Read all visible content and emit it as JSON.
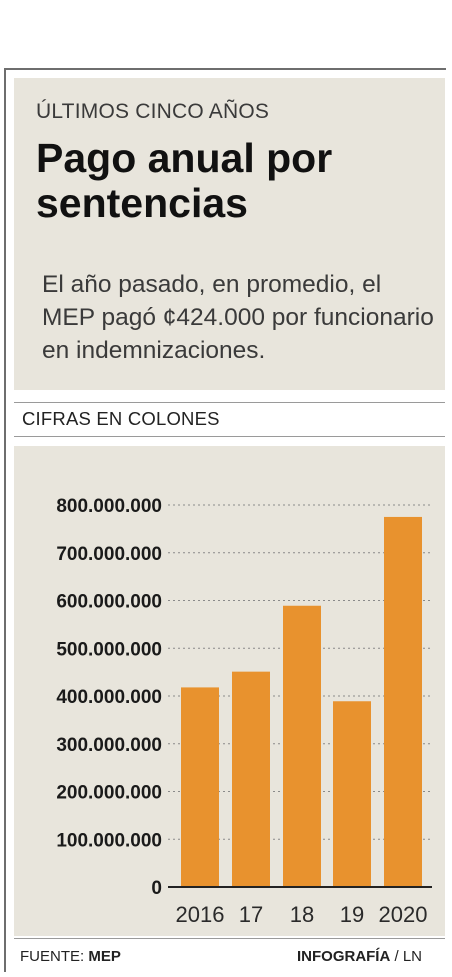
{
  "header": {
    "kicker": "ÚLTIMOS CINCO AÑOS",
    "title": "Pago anual por sentencias",
    "subtitle": "El año pasado, en promedio, el MEP pagó ¢424.000 por funcionario en indemnizaciones."
  },
  "units_label": "CIFRAS EN COLONES",
  "footer": {
    "source_label": "FUENTE:",
    "source_value": "MEP",
    "credit_label": "INFOGRAFÍA",
    "credit_value": "/ LN"
  },
  "colors": {
    "bar": "#e8922e",
    "panel": "#e8e5dc"
  },
  "chart_data": {
    "type": "bar",
    "title": "Pago anual por sentencias",
    "subtitle": "ÚLTIMOS CINCO AÑOS",
    "xlabel": "",
    "ylabel": "CIFRAS EN COLONES",
    "categories": [
      "2016",
      "17",
      "18",
      "19",
      "2020"
    ],
    "values": [
      418000000,
      451000000,
      589000000,
      389000000,
      775000000
    ],
    "ylim": [
      0,
      800000000
    ],
    "yticks": [
      0,
      100000000,
      200000000,
      300000000,
      400000000,
      500000000,
      600000000,
      700000000,
      800000000
    ],
    "ytick_labels": [
      "0",
      "100.000.000",
      "200.000.000",
      "300.000.000",
      "400.000.000",
      "500.000.000",
      "600.000.000",
      "700.000.000",
      "800.000.000"
    ],
    "grid": true,
    "legend": false
  }
}
